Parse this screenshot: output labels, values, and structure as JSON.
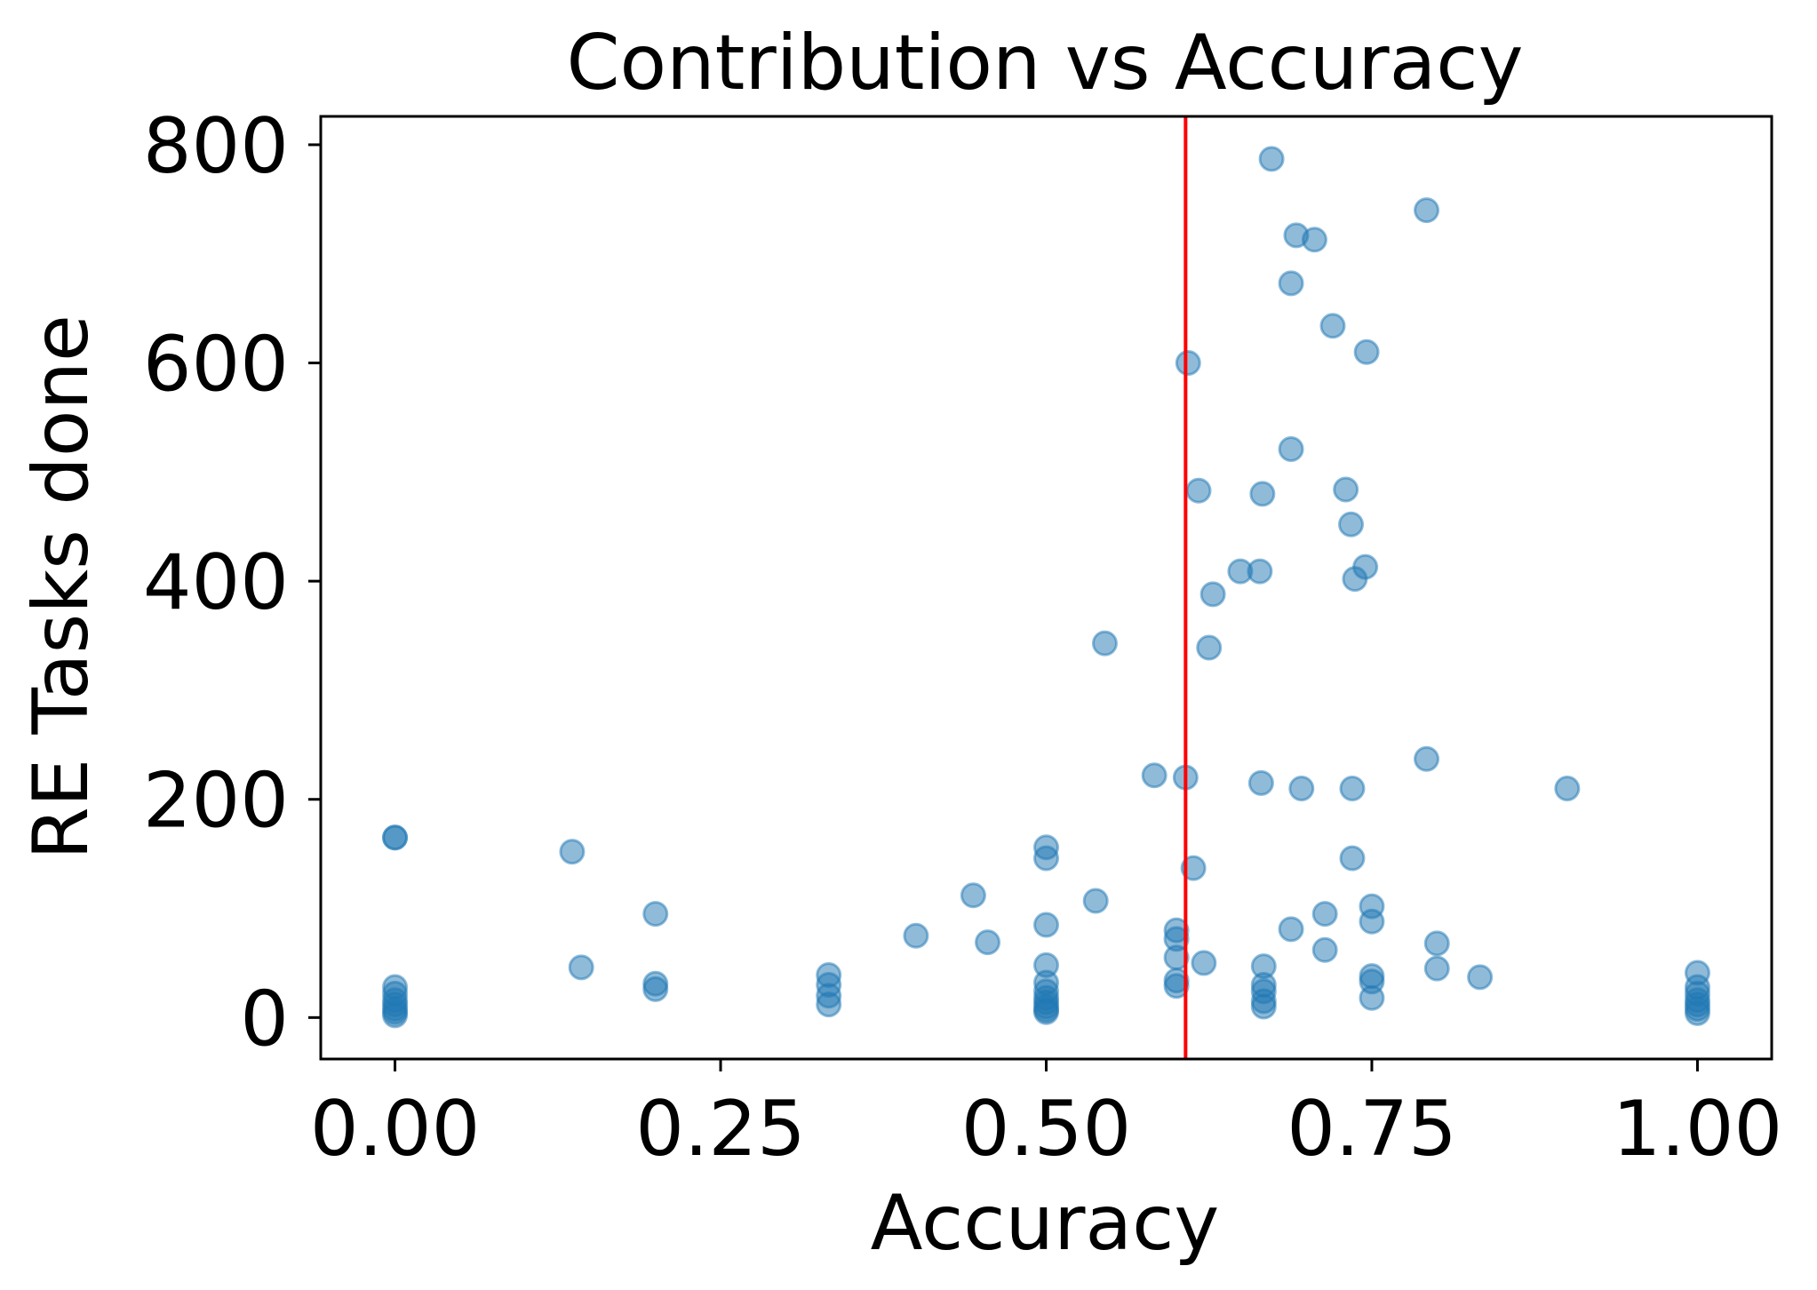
{
  "chart_data": {
    "type": "scatter",
    "title": "Contribution vs Accuracy",
    "xlabel": "Accuracy",
    "ylabel": "RE Tasks done",
    "xlim": [
      -0.057,
      1.057
    ],
    "ylim": [
      -38,
      826
    ],
    "xticks": [
      {
        "value": 0.0,
        "label": "0.00"
      },
      {
        "value": 0.25,
        "label": "0.25"
      },
      {
        "value": 0.5,
        "label": "0.50"
      },
      {
        "value": 0.75,
        "label": "0.75"
      },
      {
        "value": 1.0,
        "label": "1.00"
      }
    ],
    "yticks": [
      {
        "value": 0,
        "label": "0"
      },
      {
        "value": 200,
        "label": "200"
      },
      {
        "value": 400,
        "label": "400"
      },
      {
        "value": 600,
        "label": "600"
      },
      {
        "value": 800,
        "label": "800"
      }
    ],
    "grid": false,
    "point_color": "#1f77b4",
    "point_alpha": 0.5,
    "reference_line": {
      "orientation": "vertical",
      "x": 0.607,
      "color": "#ff0000"
    },
    "points": [
      {
        "x": 0.0,
        "y": 165
      },
      {
        "x": 0.0,
        "y": 165
      },
      {
        "x": 0.0,
        "y": 28
      },
      {
        "x": 0.0,
        "y": 22
      },
      {
        "x": 0.0,
        "y": 16
      },
      {
        "x": 0.0,
        "y": 12
      },
      {
        "x": 0.0,
        "y": 8
      },
      {
        "x": 0.0,
        "y": 5
      },
      {
        "x": 0.0,
        "y": 2
      },
      {
        "x": 0.136,
        "y": 152
      },
      {
        "x": 0.143,
        "y": 46
      },
      {
        "x": 0.2,
        "y": 95
      },
      {
        "x": 0.2,
        "y": 31
      },
      {
        "x": 0.2,
        "y": 26
      },
      {
        "x": 0.333,
        "y": 39
      },
      {
        "x": 0.333,
        "y": 30
      },
      {
        "x": 0.333,
        "y": 20
      },
      {
        "x": 0.333,
        "y": 12
      },
      {
        "x": 0.4,
        "y": 75
      },
      {
        "x": 0.444,
        "y": 112
      },
      {
        "x": 0.455,
        "y": 69
      },
      {
        "x": 0.5,
        "y": 156
      },
      {
        "x": 0.5,
        "y": 146
      },
      {
        "x": 0.5,
        "y": 85
      },
      {
        "x": 0.5,
        "y": 48
      },
      {
        "x": 0.5,
        "y": 32
      },
      {
        "x": 0.5,
        "y": 24
      },
      {
        "x": 0.5,
        "y": 18
      },
      {
        "x": 0.5,
        "y": 14
      },
      {
        "x": 0.5,
        "y": 10
      },
      {
        "x": 0.5,
        "y": 7
      },
      {
        "x": 0.5,
        "y": 5
      },
      {
        "x": 0.538,
        "y": 107
      },
      {
        "x": 0.545,
        "y": 343
      },
      {
        "x": 0.583,
        "y": 222
      },
      {
        "x": 0.6,
        "y": 80
      },
      {
        "x": 0.6,
        "y": 72
      },
      {
        "x": 0.6,
        "y": 55
      },
      {
        "x": 0.6,
        "y": 34
      },
      {
        "x": 0.6,
        "y": 29
      },
      {
        "x": 0.607,
        "y": 220
      },
      {
        "x": 0.609,
        "y": 600
      },
      {
        "x": 0.613,
        "y": 137
      },
      {
        "x": 0.617,
        "y": 483
      },
      {
        "x": 0.621,
        "y": 50
      },
      {
        "x": 0.625,
        "y": 339
      },
      {
        "x": 0.628,
        "y": 388
      },
      {
        "x": 0.649,
        "y": 409
      },
      {
        "x": 0.664,
        "y": 409
      },
      {
        "x": 0.665,
        "y": 215
      },
      {
        "x": 0.666,
        "y": 480
      },
      {
        "x": 0.667,
        "y": 47
      },
      {
        "x": 0.667,
        "y": 30
      },
      {
        "x": 0.667,
        "y": 24
      },
      {
        "x": 0.667,
        "y": 15
      },
      {
        "x": 0.667,
        "y": 10
      },
      {
        "x": 0.673,
        "y": 787
      },
      {
        "x": 0.688,
        "y": 81
      },
      {
        "x": 0.688,
        "y": 521
      },
      {
        "x": 0.688,
        "y": 673
      },
      {
        "x": 0.692,
        "y": 717
      },
      {
        "x": 0.696,
        "y": 210
      },
      {
        "x": 0.706,
        "y": 713
      },
      {
        "x": 0.714,
        "y": 95
      },
      {
        "x": 0.714,
        "y": 62
      },
      {
        "x": 0.72,
        "y": 634
      },
      {
        "x": 0.73,
        "y": 484
      },
      {
        "x": 0.734,
        "y": 452
      },
      {
        "x": 0.735,
        "y": 210
      },
      {
        "x": 0.735,
        "y": 146
      },
      {
        "x": 0.737,
        "y": 402
      },
      {
        "x": 0.745,
        "y": 413
      },
      {
        "x": 0.746,
        "y": 610
      },
      {
        "x": 0.75,
        "y": 102
      },
      {
        "x": 0.75,
        "y": 88
      },
      {
        "x": 0.75,
        "y": 38
      },
      {
        "x": 0.75,
        "y": 33
      },
      {
        "x": 0.75,
        "y": 18
      },
      {
        "x": 0.792,
        "y": 740
      },
      {
        "x": 0.792,
        "y": 237
      },
      {
        "x": 0.8,
        "y": 68
      },
      {
        "x": 0.8,
        "y": 45
      },
      {
        "x": 0.833,
        "y": 37
      },
      {
        "x": 0.9,
        "y": 210
      },
      {
        "x": 1.0,
        "y": 41
      },
      {
        "x": 1.0,
        "y": 28
      },
      {
        "x": 1.0,
        "y": 22
      },
      {
        "x": 1.0,
        "y": 16
      },
      {
        "x": 1.0,
        "y": 12
      },
      {
        "x": 1.0,
        "y": 8
      },
      {
        "x": 1.0,
        "y": 4
      }
    ]
  }
}
